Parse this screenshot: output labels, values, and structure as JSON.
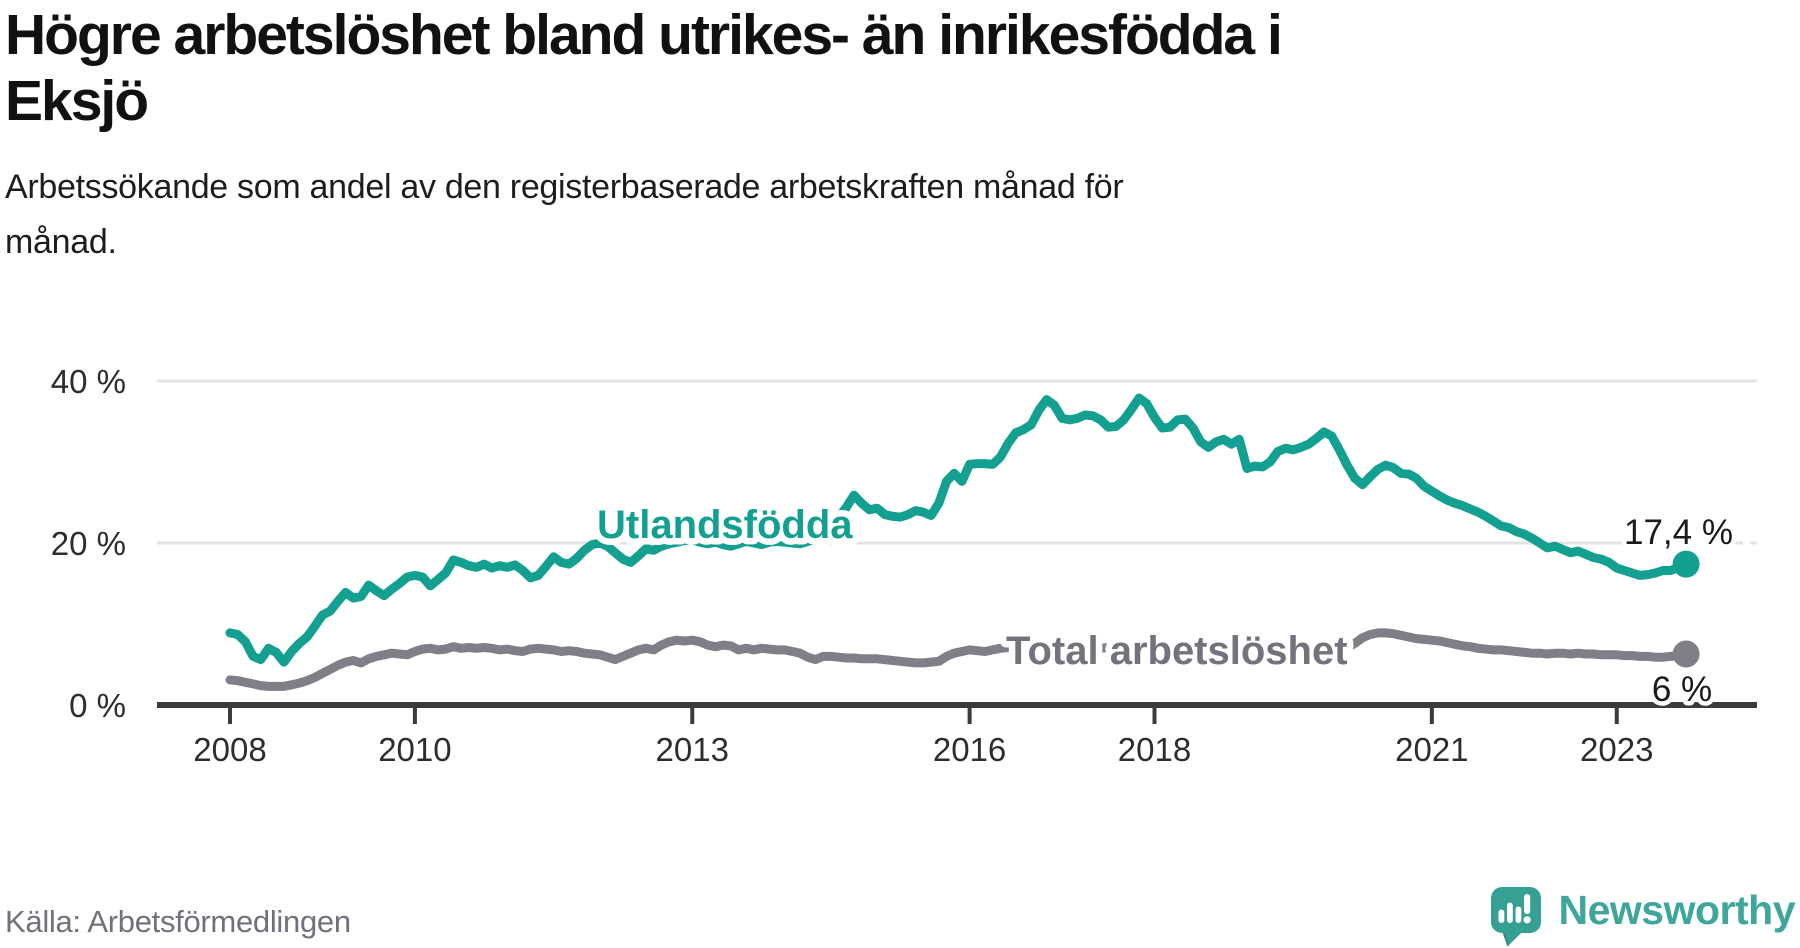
{
  "header": {
    "title_lines": [
      "Högre arbetslöshet bland utrikes- än inrikesfödda i",
      "Eksjö"
    ],
    "subtitle_lines": [
      "Arbetssökande som andel av den registerbaserade arbetskraften månad för",
      "månad."
    ]
  },
  "chart_data": {
    "type": "line",
    "title": "Högre arbetslöshet bland utrikes- än inrikesfödda i Eksjö",
    "subtitle": "Arbetssökande som andel av den registerbaserade arbetskraften månad för månad.",
    "frequency": "monthly",
    "start_month": "2008-01",
    "end_month": "2023-10",
    "ylim": [
      0,
      40
    ],
    "grid": "horizontal",
    "legend": "inline-labels",
    "y_axis": {
      "ticks": [
        {
          "label": "0 %",
          "value": 0
        },
        {
          "label": "20 %",
          "value": 20
        },
        {
          "label": "40 %",
          "value": 40
        }
      ]
    },
    "x_ticks": [
      {
        "label": "2008",
        "year": 2008
      },
      {
        "label": "2010",
        "year": 2010
      },
      {
        "label": "2013",
        "year": 2013
      },
      {
        "label": "2016",
        "year": 2016
      },
      {
        "label": "2018",
        "year": 2018
      },
      {
        "label": "2021",
        "year": 2021
      },
      {
        "label": "2023",
        "year": 2023
      }
    ],
    "series": [
      {
        "name": "Utlandsfödda",
        "color": "#14a090",
        "label_color": "#14a090",
        "end_label": "17,4 %",
        "end_value": 17.4,
        "values": [
          8.9,
          8.7,
          7.8,
          6.0,
          5.6,
          7.0,
          6.5,
          5.3,
          6.6,
          7.6,
          8.4,
          9.7,
          11.1,
          11.6,
          12.8,
          13.9,
          13.2,
          13.4,
          14.8,
          14.1,
          13.5,
          14.3,
          15.0,
          15.8,
          16.0,
          15.8,
          14.7,
          15.5,
          16.3,
          17.9,
          17.6,
          17.2,
          17.0,
          17.4,
          16.9,
          17.2,
          17.0,
          17.3,
          16.6,
          15.7,
          16.0,
          17.1,
          18.3,
          17.6,
          17.4,
          18.1,
          19.1,
          19.8,
          20.0,
          19.6,
          18.8,
          18.0,
          17.6,
          18.4,
          19.3,
          19.1,
          19.6,
          19.9,
          20.1,
          20.3,
          20.4,
          20.1,
          19.9,
          20.1,
          19.8,
          19.6,
          19.9,
          20.2,
          20.0,
          19.8,
          20.1,
          20.2,
          20.1,
          20.0,
          19.9,
          20.2,
          20.5,
          21.0,
          21.9,
          23.2,
          24.4,
          25.9,
          24.9,
          24.1,
          24.3,
          23.5,
          23.3,
          23.2,
          23.5,
          24.0,
          23.8,
          23.4,
          24.9,
          27.6,
          28.6,
          27.6,
          29.7,
          29.8,
          29.8,
          29.7,
          30.6,
          32.3,
          33.6,
          34.0,
          34.6,
          36.4,
          37.7,
          37.0,
          35.4,
          35.2,
          35.4,
          35.8,
          35.7,
          35.2,
          34.3,
          34.4,
          35.2,
          36.5,
          37.9,
          37.2,
          35.5,
          34.2,
          34.3,
          35.2,
          35.3,
          34.2,
          32.5,
          31.8,
          32.5,
          32.8,
          32.2,
          32.8,
          29.2,
          29.5,
          29.4,
          30.0,
          31.3,
          31.7,
          31.5,
          31.8,
          32.2,
          32.9,
          33.7,
          33.2,
          31.5,
          29.6,
          28.0,
          27.2,
          28.2,
          29.1,
          29.6,
          29.3,
          28.6,
          28.5,
          28.0,
          27.0,
          26.4,
          25.8,
          25.3,
          24.9,
          24.6,
          24.2,
          23.8,
          23.3,
          22.7,
          22.1,
          21.9,
          21.4,
          21.1,
          20.6,
          20.0,
          19.4,
          19.6,
          19.2,
          18.8,
          19.0,
          18.6,
          18.2,
          18.0,
          17.6,
          16.9,
          16.6,
          16.3,
          16.0,
          16.1,
          16.3,
          16.6,
          16.6,
          17.0,
          17.4
        ]
      },
      {
        "name": "Total arbetslöshet",
        "color": "#807e86",
        "label_color": "#74727c",
        "end_label": "6 %",
        "end_value": 6.0,
        "values": [
          3.1,
          3.0,
          2.8,
          2.6,
          2.4,
          2.3,
          2.3,
          2.3,
          2.5,
          2.7,
          3.0,
          3.4,
          3.9,
          4.4,
          4.9,
          5.3,
          5.5,
          5.2,
          5.7,
          6.0,
          6.2,
          6.4,
          6.3,
          6.2,
          6.6,
          6.9,
          7.0,
          6.8,
          6.9,
          7.2,
          7.0,
          7.1,
          7.0,
          7.1,
          7.0,
          6.8,
          6.9,
          6.7,
          6.6,
          6.9,
          7.0,
          6.9,
          6.8,
          6.6,
          6.7,
          6.6,
          6.4,
          6.3,
          6.2,
          5.9,
          5.6,
          6.0,
          6.4,
          6.8,
          7.0,
          6.8,
          7.4,
          7.8,
          8.0,
          7.9,
          8.0,
          7.8,
          7.4,
          7.2,
          7.4,
          7.3,
          6.8,
          7.0,
          6.8,
          7.0,
          6.9,
          6.8,
          6.8,
          6.6,
          6.4,
          5.9,
          5.6,
          6.0,
          6.0,
          5.9,
          5.8,
          5.8,
          5.7,
          5.7,
          5.7,
          5.6,
          5.5,
          5.4,
          5.3,
          5.2,
          5.2,
          5.3,
          5.4,
          6.0,
          6.4,
          6.6,
          6.8,
          6.7,
          6.6,
          6.8,
          7.0,
          7.1,
          7.2,
          7.1,
          7.0,
          7.1,
          7.2,
          7.1,
          7.0,
          7.0,
          7.1,
          7.0,
          6.9,
          7.0,
          7.1,
          7.0,
          6.9,
          6.8,
          6.9,
          6.8,
          6.7,
          6.6,
          6.6,
          6.5,
          6.4,
          6.5,
          6.6,
          6.5,
          6.4,
          6.3,
          6.4,
          6.5,
          6.4,
          6.3,
          6.2,
          6.2,
          6.3,
          6.4,
          6.5,
          6.4,
          6.3,
          6.4,
          6.5,
          6.6,
          6.8,
          7.1,
          7.6,
          8.3,
          8.7,
          8.9,
          8.9,
          8.8,
          8.6,
          8.4,
          8.2,
          8.1,
          8.0,
          7.9,
          7.7,
          7.5,
          7.3,
          7.2,
          7.0,
          6.9,
          6.8,
          6.8,
          6.7,
          6.6,
          6.5,
          6.4,
          6.4,
          6.3,
          6.4,
          6.4,
          6.3,
          6.4,
          6.3,
          6.3,
          6.2,
          6.2,
          6.2,
          6.1,
          6.1,
          6.0,
          6.0,
          5.9,
          5.9,
          6.0,
          6.1,
          6.3
        ]
      }
    ]
  },
  "footer": {
    "source": "Källa: Arbetsförmedlingen",
    "brand": "Newsworthy"
  },
  "colors": {
    "accent_teal": "#14a090",
    "series_gray": "#807e86",
    "gridline": "#e3e3e3",
    "axis": "#3b3b3b",
    "axis_text": "#2d2d2d",
    "value_label": "#1a1a1a",
    "brand_teal": "#3fa69c"
  }
}
